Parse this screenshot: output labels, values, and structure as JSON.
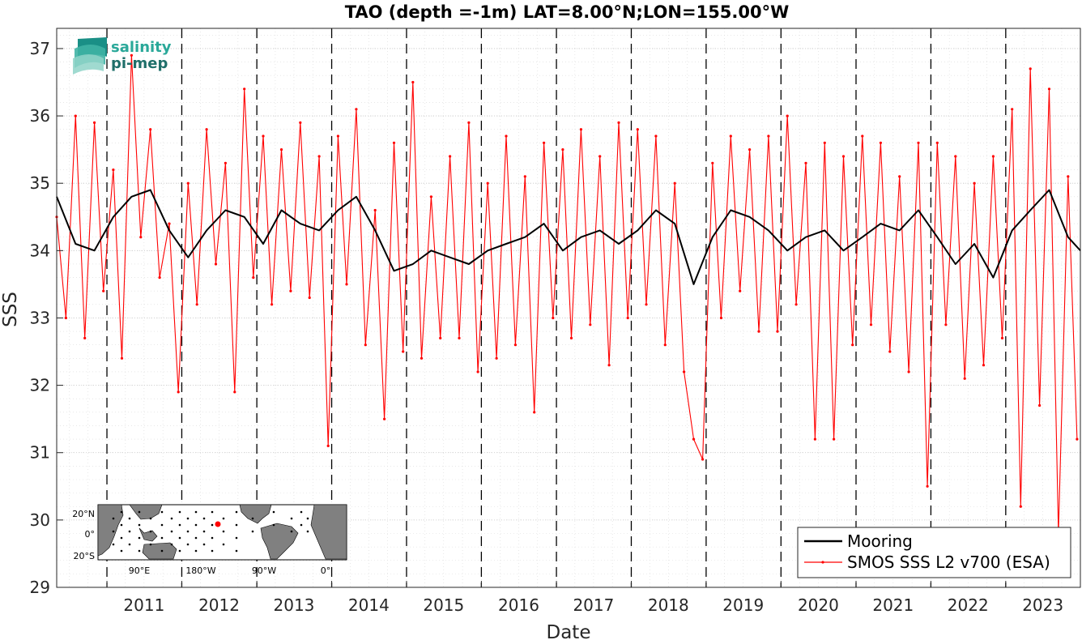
{
  "chart_data": {
    "type": "line",
    "title": "TAO (depth =-1m) LAT=8.00°N;LON=155.00°W",
    "xlabel": "Date",
    "ylabel": "SSS",
    "xlim": [
      "2010-05-01",
      "2023-12-31"
    ],
    "ylim": [
      29,
      37.3
    ],
    "yticks": [
      29,
      30,
      31,
      32,
      33,
      34,
      35,
      36,
      37
    ],
    "xticks": [
      "2011",
      "2012",
      "2013",
      "2014",
      "2015",
      "2016",
      "2017",
      "2018",
      "2019",
      "2020",
      "2021",
      "2022",
      "2023"
    ],
    "year_lines": [
      "2011",
      "2012",
      "2013",
      "2014",
      "2015",
      "2016",
      "2017",
      "2018",
      "2019",
      "2020",
      "2021",
      "2022",
      "2023"
    ],
    "grid": true,
    "legend_position": "bottom-right",
    "series": [
      {
        "name": "Mooring",
        "color": "#000000",
        "x": [
          "2010-05-01",
          "2010-08-01",
          "2010-11-01",
          "2011-02-01",
          "2011-05-01",
          "2011-08-01",
          "2011-11-01",
          "2012-02-01",
          "2012-05-01",
          "2012-08-01",
          "2012-11-01",
          "2013-02-01",
          "2013-05-01",
          "2013-08-01",
          "2013-11-01",
          "2014-02-01",
          "2014-05-01",
          "2014-08-01",
          "2014-11-01",
          "2015-02-01",
          "2015-05-01",
          "2015-08-01",
          "2015-11-01",
          "2016-02-01",
          "2016-05-01",
          "2016-08-01",
          "2016-11-01",
          "2017-02-01",
          "2017-05-01",
          "2017-08-01",
          "2017-11-01",
          "2018-02-01",
          "2018-05-01",
          "2018-08-01",
          "2018-11-01",
          "2019-02-01",
          "2019-05-01",
          "2019-08-01",
          "2019-11-01",
          "2020-02-01",
          "2020-05-01",
          "2020-08-01",
          "2020-11-01",
          "2021-02-01",
          "2021-05-01",
          "2021-08-01",
          "2021-11-01",
          "2022-02-01",
          "2022-05-01",
          "2022-08-01",
          "2022-11-01",
          "2023-02-01",
          "2023-05-01",
          "2023-08-01",
          "2023-11-01",
          "2023-12-31"
        ],
        "values": [
          34.8,
          34.1,
          34.0,
          34.5,
          34.8,
          34.9,
          34.3,
          33.9,
          34.3,
          34.6,
          34.5,
          34.1,
          34.6,
          34.4,
          34.3,
          34.6,
          34.8,
          34.3,
          33.7,
          33.8,
          34.0,
          33.9,
          33.8,
          34.0,
          34.1,
          34.2,
          34.4,
          34.0,
          34.2,
          34.3,
          34.1,
          34.3,
          34.6,
          34.4,
          33.5,
          34.2,
          34.6,
          34.5,
          34.3,
          34.0,
          34.2,
          34.3,
          34.0,
          34.2,
          34.4,
          34.3,
          34.6,
          34.2,
          33.8,
          34.1,
          33.6,
          34.3,
          34.6,
          34.9,
          34.2,
          34.0
        ]
      },
      {
        "name": "SMOS SSS L2 v700 (ESA)",
        "color": "#ff0000",
        "x": [
          "2010-05-01",
          "2010-06-15",
          "2010-08-01",
          "2010-09-15",
          "2010-11-01",
          "2010-12-15",
          "2011-02-01",
          "2011-03-15",
          "2011-05-01",
          "2011-06-15",
          "2011-08-01",
          "2011-09-15",
          "2011-11-01",
          "2011-12-15",
          "2012-02-01",
          "2012-03-15",
          "2012-05-01",
          "2012-06-15",
          "2012-08-01",
          "2012-09-15",
          "2012-11-01",
          "2012-12-15",
          "2013-02-01",
          "2013-03-15",
          "2013-05-01",
          "2013-06-15",
          "2013-08-01",
          "2013-09-15",
          "2013-11-01",
          "2013-12-15",
          "2014-02-01",
          "2014-03-15",
          "2014-05-01",
          "2014-06-15",
          "2014-08-01",
          "2014-09-15",
          "2014-11-01",
          "2014-12-15",
          "2015-02-01",
          "2015-03-15",
          "2015-05-01",
          "2015-06-15",
          "2015-08-01",
          "2015-09-15",
          "2015-11-01",
          "2015-12-15",
          "2016-02-01",
          "2016-03-15",
          "2016-05-01",
          "2016-06-15",
          "2016-08-01",
          "2016-09-15",
          "2016-11-01",
          "2016-12-15",
          "2017-02-01",
          "2017-03-15",
          "2017-05-01",
          "2017-06-15",
          "2017-08-01",
          "2017-09-15",
          "2017-11-01",
          "2017-12-15",
          "2018-02-01",
          "2018-03-15",
          "2018-05-01",
          "2018-06-15",
          "2018-08-01",
          "2018-09-15",
          "2018-11-01",
          "2018-12-15",
          "2019-02-01",
          "2019-03-15",
          "2019-05-01",
          "2019-06-15",
          "2019-08-01",
          "2019-09-15",
          "2019-11-01",
          "2019-12-15",
          "2020-02-01",
          "2020-03-15",
          "2020-05-01",
          "2020-06-15",
          "2020-08-01",
          "2020-09-15",
          "2020-11-01",
          "2020-12-15",
          "2021-02-01",
          "2021-03-15",
          "2021-05-01",
          "2021-06-15",
          "2021-08-01",
          "2021-09-15",
          "2021-11-01",
          "2021-12-15",
          "2022-02-01",
          "2022-03-15",
          "2022-05-01",
          "2022-06-15",
          "2022-08-01",
          "2022-09-15",
          "2022-11-01",
          "2022-12-15",
          "2023-02-01",
          "2023-03-15",
          "2023-05-01",
          "2023-06-15",
          "2023-08-01",
          "2023-09-15",
          "2023-11-01",
          "2023-12-15"
        ],
        "values": [
          34.5,
          33.0,
          36.0,
          32.7,
          35.9,
          33.4,
          35.2,
          32.4,
          36.9,
          34.2,
          35.8,
          33.6,
          34.4,
          31.9,
          35.0,
          33.2,
          35.8,
          33.8,
          35.3,
          31.9,
          36.4,
          33.6,
          35.7,
          33.2,
          35.5,
          33.4,
          35.9,
          33.3,
          35.4,
          31.1,
          35.7,
          33.5,
          36.1,
          32.6,
          34.6,
          31.5,
          35.6,
          32.5,
          36.5,
          32.4,
          34.8,
          32.7,
          35.4,
          32.7,
          35.9,
          32.2,
          35.0,
          32.4,
          35.7,
          32.6,
          35.1,
          31.6,
          35.6,
          33.0,
          35.5,
          32.7,
          35.8,
          32.9,
          35.4,
          32.3,
          35.9,
          33.0,
          35.8,
          33.2,
          35.7,
          32.6,
          35.0,
          32.2,
          31.2,
          30.9,
          35.3,
          33.0,
          35.7,
          33.4,
          35.5,
          32.8,
          35.7,
          32.8,
          36.0,
          33.2,
          35.3,
          31.2,
          35.6,
          31.2,
          35.4,
          32.6,
          35.7,
          32.9,
          35.6,
          32.5,
          35.1,
          32.2,
          35.6,
          30.5,
          35.6,
          32.9,
          35.4,
          32.1,
          35.0,
          32.3,
          35.4,
          32.7,
          36.1,
          30.2,
          36.7,
          31.7,
          36.4,
          29.8,
          35.1,
          31.2
        ]
      }
    ]
  },
  "logo": {
    "line1": "salinity",
    "line2": "pi-mep"
  },
  "inset_map": {
    "lat_labels": [
      "20°N",
      "0°",
      "20°S"
    ],
    "lon_labels": [
      "90°E",
      "180°W",
      "90°W",
      "0°"
    ],
    "land_color": "#808080",
    "ocean_color": "#ffffff",
    "marker_color": "#ff0000"
  }
}
